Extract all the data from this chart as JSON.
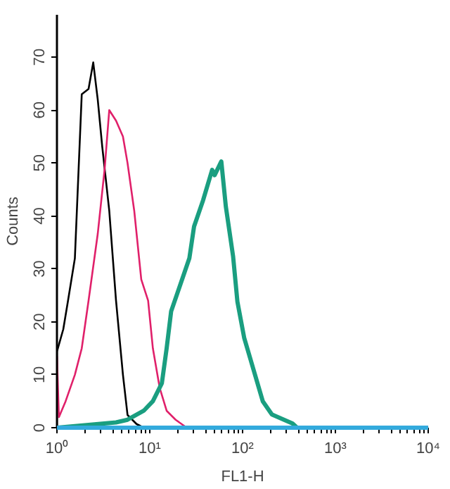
{
  "chart_data": {
    "type": "line",
    "xlabel": "FL1-H",
    "ylabel": "Counts",
    "log": "x",
    "xlim": [
      1,
      10000
    ],
    "ylim": [
      0,
      78
    ],
    "xticks": [
      {
        "value": 1,
        "label": "10⁰"
      },
      {
        "value": 10,
        "label": "10¹"
      },
      {
        "value": 100,
        "label": "10²"
      },
      {
        "value": 1000,
        "label": "10³"
      },
      {
        "value": 10000,
        "label": "10⁴"
      }
    ],
    "yticks": [
      0,
      10,
      20,
      30,
      40,
      50,
      60,
      70
    ],
    "grid": false,
    "series": [
      {
        "color": "#000000",
        "x": [
          1.0,
          1.0,
          1.17,
          1.31,
          1.56,
          1.85,
          2.19,
          2.46,
          2.75,
          3.08,
          3.66,
          4.33,
          5.14,
          5.76,
          7.2,
          8.6,
          30
        ],
        "values": [
          0,
          14.4,
          18.6,
          23.8,
          32,
          63,
          64,
          69,
          62,
          53,
          41,
          24,
          10,
          2.4,
          0.7,
          0,
          0
        ]
      },
      {
        "color": "#e0206a",
        "x": [
          1.0,
          1.05,
          1.24,
          1.56,
          1.85,
          2.19,
          2.75,
          3.27,
          3.66,
          4.33,
          5.14,
          5.76,
          6.8,
          8.1,
          9.6,
          10.8,
          12.8,
          15.2,
          19,
          25,
          400
        ],
        "values": [
          13.5,
          2,
          5,
          10,
          15,
          24,
          36.6,
          49,
          60,
          58,
          55,
          50,
          41,
          28,
          24,
          15,
          7.5,
          3.2,
          1.5,
          0,
          0
        ]
      },
      {
        "color": "#1a9e80",
        "x": [
          1,
          4.33,
          5.76,
          8.6,
          10.8,
          13.5,
          15.2,
          17,
          21.3,
          26.7,
          30,
          37.6,
          47,
          50,
          59,
          66,
          79,
          88,
          104,
          131,
          165,
          207,
          345,
          387,
          10000
        ],
        "values": [
          0,
          1,
          1.5,
          3.2,
          5,
          8.4,
          15,
          22,
          27,
          32,
          38,
          43,
          48.7,
          47.7,
          50.3,
          41.8,
          32.4,
          23.8,
          17,
          11,
          5,
          2.5,
          0.8,
          0,
          0
        ]
      },
      {
        "color": "#33aadd",
        "x": [
          1,
          10000
        ],
        "values": [
          0,
          0
        ]
      }
    ]
  }
}
